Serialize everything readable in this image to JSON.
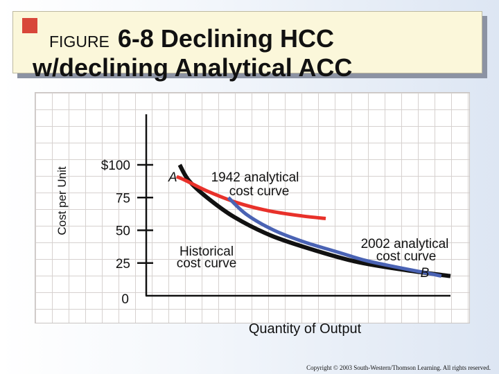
{
  "title": {
    "label": "FIGURE",
    "number_title": "6-8 Declining HCC",
    "line2": "w/declining Analytical ACC"
  },
  "chart_data": {
    "type": "line",
    "ylabel": "Cost per Unit",
    "xlabel": "Quantity of Output",
    "yticks": [
      {
        "value": 100,
        "label": "$100"
      },
      {
        "value": 75,
        "label": "75"
      },
      {
        "value": 50,
        "label": "50"
      },
      {
        "value": 25,
        "label": "25"
      },
      {
        "value": 0,
        "label": "0"
      }
    ],
    "ylim": [
      0,
      100
    ],
    "xlim": [
      0,
      100
    ],
    "grid": true,
    "series": [
      {
        "id": "historical",
        "color": "#111111",
        "points": [
          [
            11,
            100
          ],
          [
            14,
            88
          ],
          [
            20,
            75
          ],
          [
            29,
            60
          ],
          [
            41,
            46
          ],
          [
            55,
            35
          ],
          [
            69,
            26
          ],
          [
            84,
            20
          ],
          [
            100,
            15
          ]
        ]
      },
      {
        "id": "analytical-1942",
        "color": "#e8312a",
        "points": [
          [
            10,
            91
          ],
          [
            13,
            88
          ],
          [
            20,
            80
          ],
          [
            30,
            71
          ],
          [
            40,
            65
          ],
          [
            51,
            61
          ],
          [
            59,
            59
          ]
        ]
      },
      {
        "id": "analytical-2002",
        "color": "#4a63b4",
        "points": [
          [
            27,
            75
          ],
          [
            33,
            62
          ],
          [
            42,
            50
          ],
          [
            52,
            41
          ],
          [
            62,
            34
          ],
          [
            72,
            27
          ],
          [
            82,
            22
          ],
          [
            93,
            17
          ],
          [
            97,
            15
          ]
        ]
      }
    ],
    "annotations": {
      "point_a": "A",
      "curve_1942": [
        "1942 analytical",
        "cost curve"
      ],
      "historical": [
        "Historical",
        "cost curve"
      ],
      "curve_2002": [
        "2002 analytical",
        "cost curve"
      ],
      "point_b": "B"
    }
  },
  "copyright": "Copyright © 2003 South-Western/Thomson Learning. All rights reserved."
}
